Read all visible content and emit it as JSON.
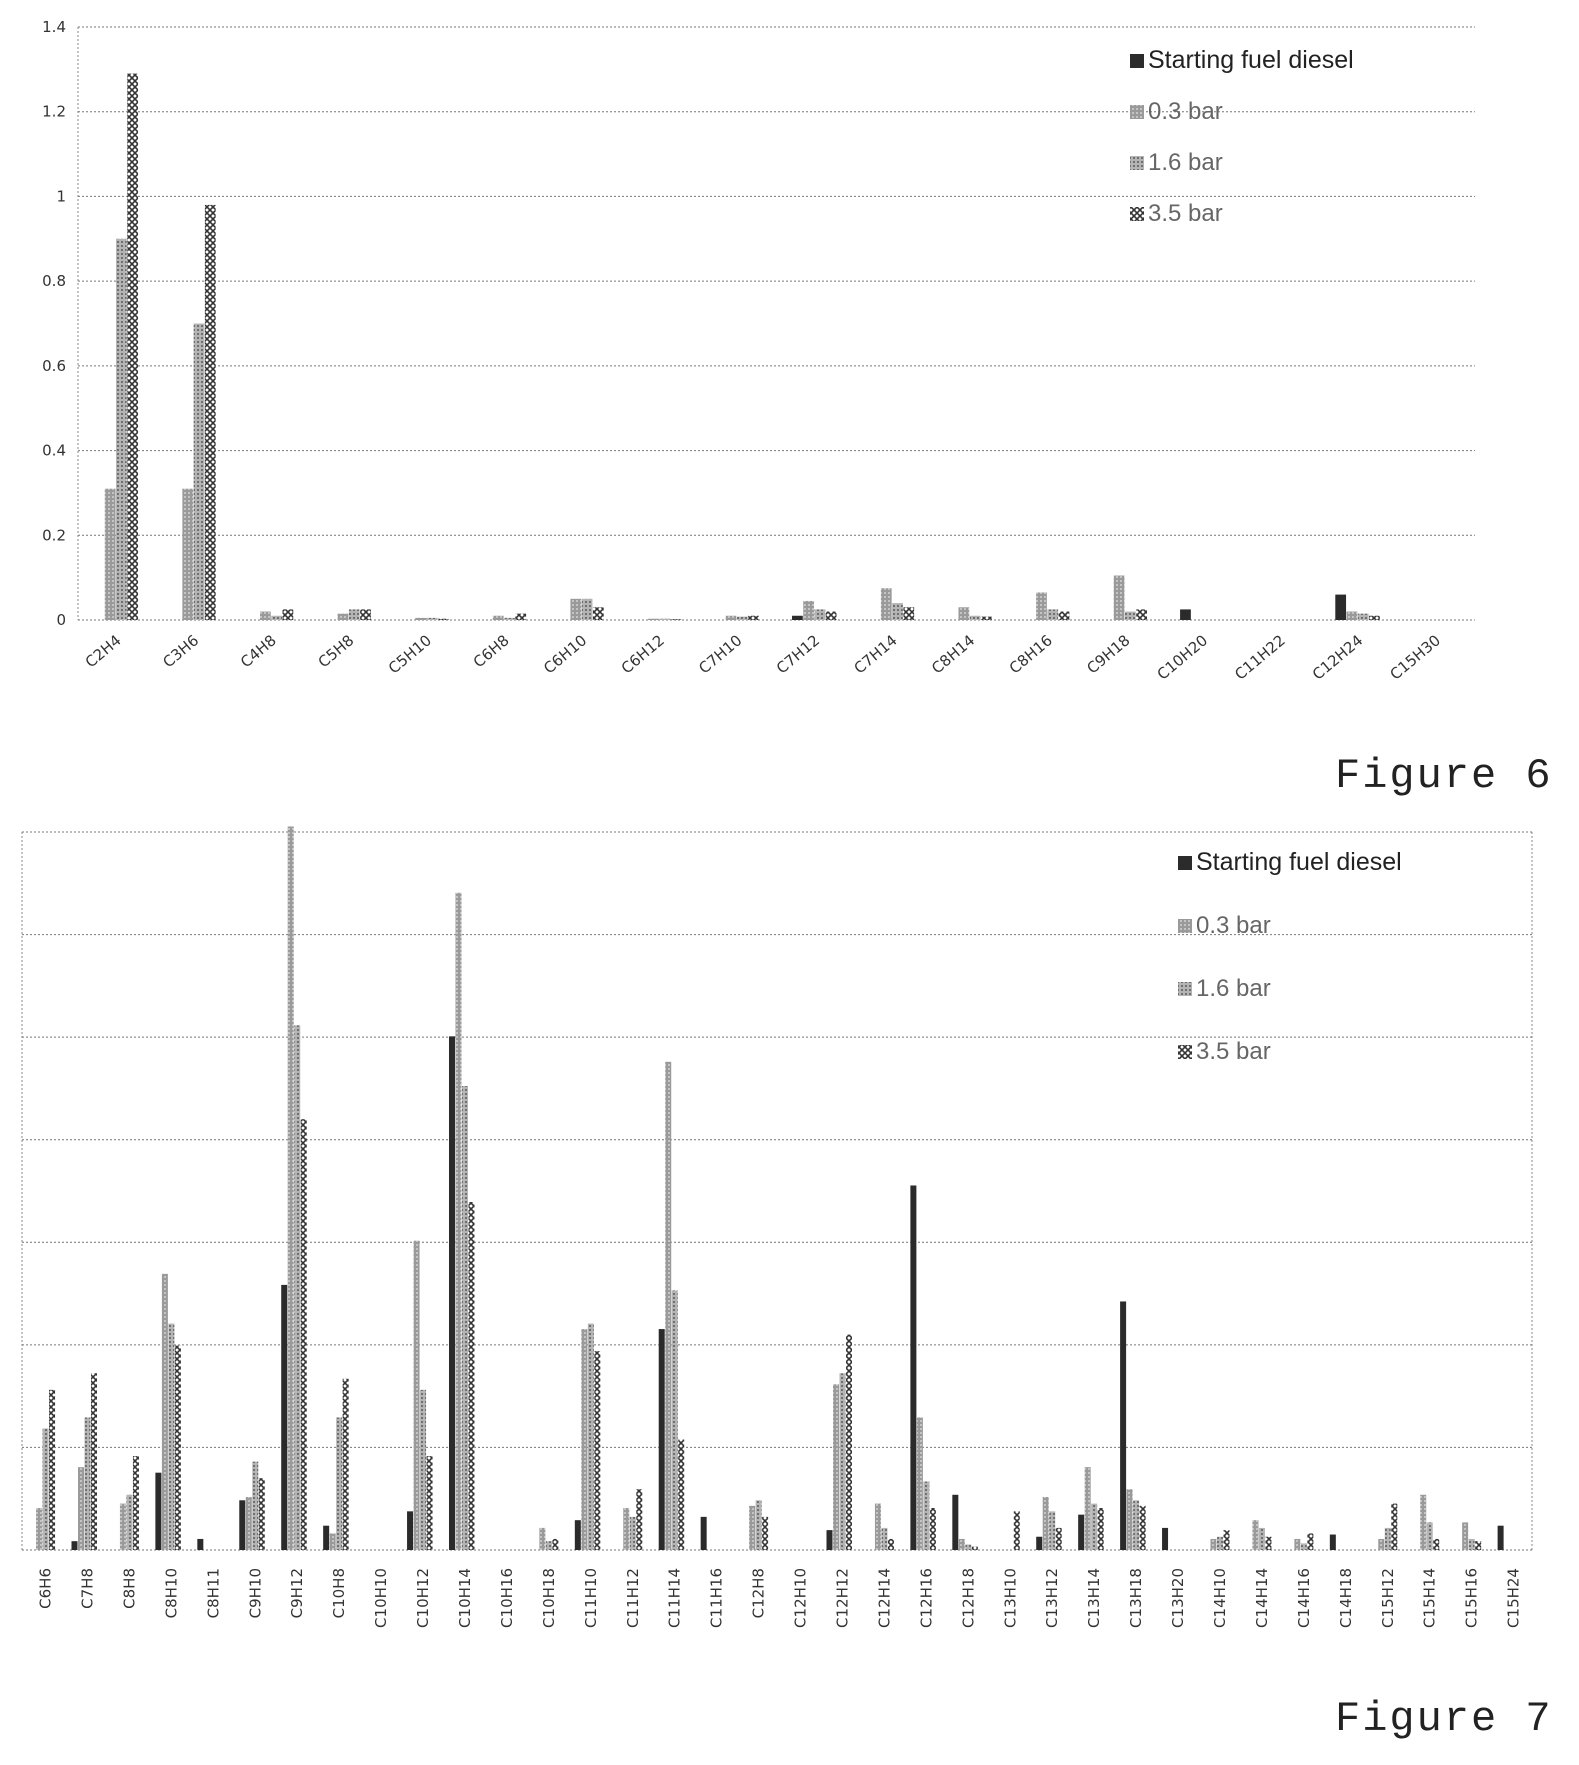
{
  "figures": [
    {
      "label": "Figure 6"
    },
    {
      "label": "Figure 7"
    }
  ],
  "chart_data": [
    {
      "type": "bar",
      "ylim": [
        0,
        1.4
      ],
      "yticks": [
        "0",
        "0.2",
        "0.4",
        "0.6",
        "0.8",
        "1",
        "1.2",
        "1.4"
      ],
      "legend_position": "top-right",
      "grid": true,
      "categories": [
        "C2H4",
        "C3H6",
        "C4H8",
        "C5H8",
        "C5H10",
        "C6H8",
        "C6H10",
        "C6H12",
        "C7H10",
        "C7H12",
        "C7H14",
        "C8H14",
        "C8H16",
        "C9H18",
        "C10H20",
        "C11H22",
        "C12H24",
        "C15H30"
      ],
      "series": [
        {
          "name": "Starting fuel diesel",
          "color": "#2b2b2b",
          "values": [
            0,
            0,
            0,
            0,
            0,
            0,
            0,
            0,
            0,
            0.01,
            0,
            0,
            0,
            0,
            0.025,
            0,
            0.06,
            0
          ]
        },
        {
          "name": "0.3 bar",
          "color": "#8f8f8f",
          "values": [
            0.31,
            0.31,
            0.02,
            0.015,
            0.005,
            0.01,
            0.05,
            0.003,
            0.01,
            0.045,
            0.075,
            0.03,
            0.065,
            0.105,
            0,
            0,
            0.02,
            0
          ]
        },
        {
          "name": "1.6 bar",
          "color": "#a8a8a8",
          "values": [
            0.9,
            0.7,
            0.01,
            0.025,
            0.005,
            0.005,
            0.05,
            0.003,
            0.008,
            0.025,
            0.04,
            0.01,
            0.025,
            0.02,
            0,
            0,
            0.015,
            0
          ]
        },
        {
          "name": "3.5 bar",
          "color": "#4a4a4a",
          "values": [
            1.29,
            0.98,
            0.025,
            0.025,
            0.003,
            0.015,
            0.03,
            0.002,
            0.01,
            0.02,
            0.03,
            0.008,
            0.02,
            0.025,
            0,
            0,
            0.01,
            0
          ]
        }
      ]
    },
    {
      "type": "bar",
      "ylim": [
        0,
        6.5
      ],
      "legend_position": "top-right",
      "grid": true,
      "categories": [
        "C6H6",
        "C7H8",
        "C8H8",
        "C8H10",
        "C8H11",
        "C9H10",
        "C9H12",
        "C10H8",
        "C10H10",
        "C10H12",
        "C10H14",
        "C10H16",
        "C10H18",
        "C11H10",
        "C11H12",
        "C11H14",
        "C11H16",
        "C12H8",
        "C12H10",
        "C12H12",
        "C12H14",
        "C12H16",
        "C12H18",
        "C13H10",
        "C13H12",
        "C13H14",
        "C13H18",
        "C13H20",
        "C14H10",
        "C14H14",
        "C14H16",
        "C14H18",
        "C15H12",
        "C15H14",
        "C15H16",
        "C15H24"
      ],
      "series": [
        {
          "name": "Starting fuel diesel",
          "color": "#2b2b2b",
          "values": [
            0,
            0.08,
            0,
            0.7,
            0.1,
            0.45,
            2.4,
            0.22,
            0,
            0.35,
            4.65,
            0,
            0,
            0.27,
            0,
            2.0,
            0.3,
            0,
            0,
            0.18,
            0,
            3.3,
            0.5,
            0,
            0.12,
            0.32,
            2.25,
            0.2,
            0,
            0,
            0,
            0.14,
            0,
            0,
            0,
            0.22
          ]
        },
        {
          "name": "0.3 bar",
          "color": "#8f8f8f",
          "values": [
            0.38,
            0.75,
            0.42,
            2.5,
            0,
            0.48,
            6.55,
            0.15,
            0,
            2.8,
            5.95,
            0,
            0.2,
            2.0,
            0.38,
            4.42,
            0,
            0.4,
            0,
            1.5,
            0.42,
            1.2,
            0.1,
            0,
            0.48,
            0.75,
            0.55,
            0,
            0.1,
            0.27,
            0.1,
            0,
            0.1,
            0.5,
            0.25,
            0
          ]
        },
        {
          "name": "1.6 bar",
          "color": "#a8a8a8",
          "values": [
            1.1,
            1.2,
            0.5,
            2.05,
            0,
            0.8,
            4.75,
            1.2,
            0,
            1.45,
            4.2,
            0,
            0.08,
            2.05,
            0.3,
            2.35,
            0,
            0.45,
            0,
            1.6,
            0.2,
            0.62,
            0.05,
            0,
            0.35,
            0.42,
            0.45,
            0,
            0.12,
            0.2,
            0.06,
            0,
            0.2,
            0.25,
            0.1,
            0
          ]
        },
        {
          "name": "3.5 bar",
          "color": "#4a4a4a",
          "values": [
            1.45,
            1.6,
            0.85,
            1.85,
            0,
            0.65,
            3.9,
            1.55,
            0,
            0.85,
            3.15,
            0,
            0.1,
            1.8,
            0.55,
            1.0,
            0,
            0.3,
            0,
            1.95,
            0.1,
            0.38,
            0.03,
            0.35,
            0.2,
            0.38,
            0.4,
            0,
            0.18,
            0.12,
            0.15,
            0,
            0.42,
            0.1,
            0.08,
            0
          ]
        }
      ]
    }
  ]
}
